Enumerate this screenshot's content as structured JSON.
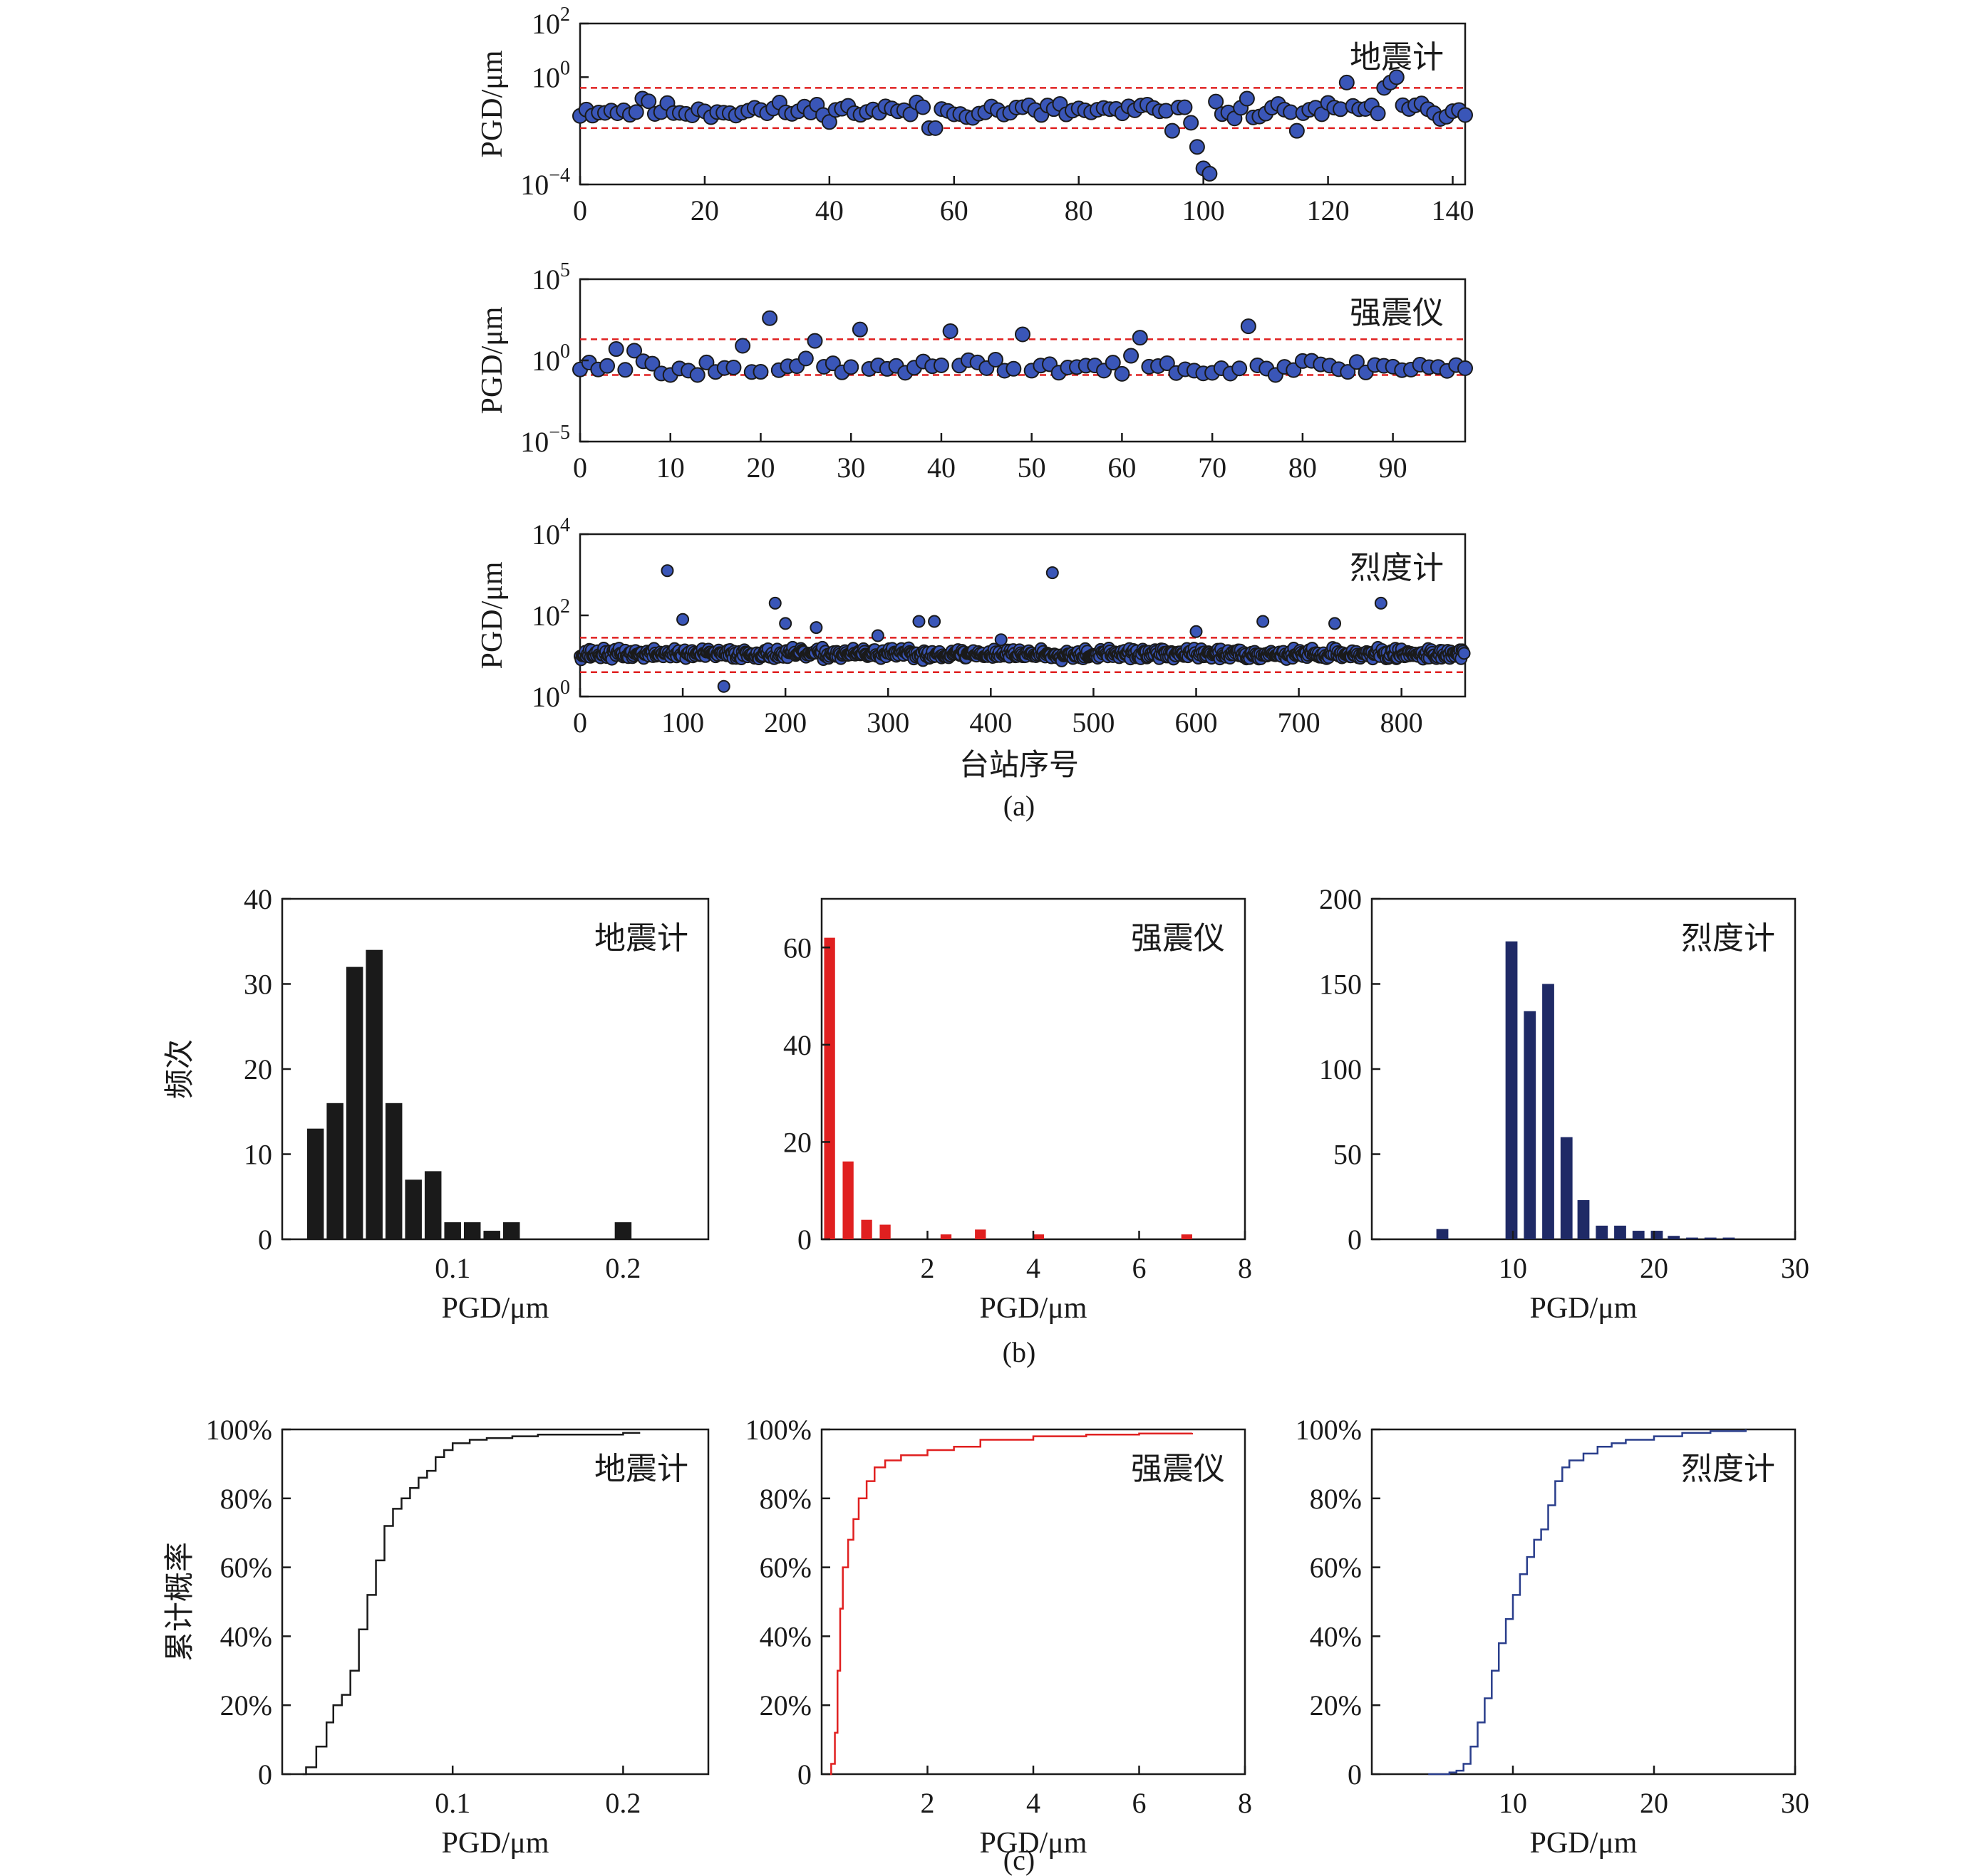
{
  "captions": {
    "a": "(a)",
    "b": "(b)",
    "c": "(c)"
  },
  "colors": {
    "blue_point": "#3a56b8",
    "red_line": "#e02020",
    "black_bar": "#1a1a1a",
    "red_bar": "#e02020",
    "navy_bar": "#1f2a66",
    "blue_cdf": "#2a3e8c"
  },
  "scatter_xlabel": "台站序号",
  "scatter": [
    {
      "label": "地震计",
      "ylabel": "PGD/μm",
      "xlim": [
        0,
        142
      ],
      "xticks": [
        0,
        20,
        40,
        60,
        80,
        100,
        120,
        140
      ],
      "ylim_exp": [
        -4,
        2
      ],
      "ytick_base": "10",
      "yticks": [
        {
          "exp": "2",
          "v": 2
        },
        {
          "exp": "0",
          "v": 0
        },
        {
          "exp": "−4",
          "v": -4
        }
      ],
      "thresholds": [
        -0.4,
        -1.9
      ],
      "n": 143,
      "seed": 11,
      "base": -1.25,
      "spread": 0.22,
      "outliers": [
        [
          100,
          -3.4
        ],
        [
          101,
          -3.6
        ],
        [
          99,
          -2.6
        ],
        [
          95,
          -2.0
        ],
        [
          98,
          -1.7
        ],
        [
          123,
          -0.2
        ],
        [
          131,
          0.0
        ],
        [
          130,
          -0.2
        ],
        [
          129,
          -0.4
        ],
        [
          107,
          -0.8
        ],
        [
          10,
          -0.8
        ],
        [
          11,
          -0.9
        ],
        [
          56,
          -1.9
        ],
        [
          57,
          -1.9
        ],
        [
          115,
          -2.0
        ]
      ]
    },
    {
      "label": "强震仪",
      "ylabel": "PGD/μm",
      "xlim": [
        0,
        98
      ],
      "xticks": [
        0,
        10,
        20,
        30,
        40,
        50,
        60,
        70,
        80,
        90
      ],
      "ylim_exp": [
        -5,
        5
      ],
      "ytick_base": "10",
      "yticks": [
        {
          "exp": "5",
          "v": 5
        },
        {
          "exp": "0",
          "v": 0
        },
        {
          "exp": "−5",
          "v": -5
        }
      ],
      "thresholds": [
        1.3,
        -0.9
      ],
      "n": 99,
      "seed": 23,
      "base": -0.4,
      "spread": 0.35,
      "outliers": [
        [
          21,
          2.6
        ],
        [
          31,
          1.9
        ],
        [
          41,
          1.8
        ],
        [
          49,
          1.6
        ],
        [
          62,
          1.4
        ],
        [
          74,
          2.1
        ],
        [
          26,
          1.2
        ],
        [
          18,
          0.9
        ],
        [
          4,
          0.7
        ],
        [
          6,
          0.6
        ],
        [
          10,
          -0.9
        ],
        [
          13,
          -0.9
        ],
        [
          69,
          -0.8
        ]
      ]
    },
    {
      "label": "烈度计",
      "ylabel": "PGD/μm",
      "xlim": [
        0,
        862
      ],
      "xticks": [
        0,
        100,
        200,
        300,
        400,
        500,
        600,
        700,
        800
      ],
      "ylim_exp": [
        0,
        4
      ],
      "ytick_base": "10",
      "yticks": [
        {
          "exp": "4",
          "v": 4
        },
        {
          "exp": "2",
          "v": 2
        },
        {
          "exp": "0",
          "v": 0
        }
      ],
      "thresholds": [
        1.45,
        0.6
      ],
      "n": 862,
      "seed": 37,
      "base": 1.05,
      "spread": 0.09,
      "outliers": [
        [
          85,
          3.1
        ],
        [
          100,
          1.9
        ],
        [
          140,
          0.25
        ],
        [
          190,
          2.3
        ],
        [
          200,
          1.8
        ],
        [
          230,
          1.7
        ],
        [
          330,
          1.85
        ],
        [
          345,
          1.85
        ],
        [
          460,
          3.05
        ],
        [
          600,
          1.6
        ],
        [
          665,
          1.85
        ],
        [
          735,
          1.8
        ],
        [
          780,
          2.3
        ],
        [
          290,
          1.5
        ],
        [
          410,
          1.4
        ]
      ]
    }
  ],
  "chart_data": [
    {
      "type": "bar",
      "label": "地震计",
      "ylabel": "频次",
      "xlabel": "PGD/μm",
      "xlim": [
        0.0,
        0.25
      ],
      "ylim": [
        0,
        40
      ],
      "bin_width": 0.0115,
      "xticks": [
        0.1,
        0.2
      ],
      "xtick_labels": [
        "0.1",
        "0.2"
      ],
      "yticks": [
        0,
        10,
        20,
        30,
        40
      ],
      "x": [
        0.0195,
        0.031,
        0.0425,
        0.054,
        0.0655,
        0.077,
        0.0885,
        0.1,
        0.1115,
        0.123,
        0.1345,
        0.146,
        0.2
      ],
      "values": [
        13,
        16,
        32,
        34,
        16,
        7,
        8,
        2,
        2,
        1,
        2,
        0,
        2
      ]
    },
    {
      "type": "bar",
      "label": "强震仪",
      "xlabel": "PGD/μm",
      "xlim": [
        0,
        8
      ],
      "ylim": [
        0,
        70
      ],
      "bin_width": 0.26,
      "xticks": [
        2,
        4,
        6,
        8
      ],
      "xtick_labels": [
        "2",
        "4",
        "6",
        "8"
      ],
      "yticks": [
        0,
        20,
        40,
        60
      ],
      "x": [
        0.15,
        0.5,
        0.85,
        1.2,
        2.35,
        3.0,
        4.1,
        6.9
      ],
      "values": [
        62,
        16,
        4,
        3,
        1,
        2,
        1,
        1
      ]
    },
    {
      "type": "bar",
      "label": "烈度计",
      "xlabel": "PGD/μm",
      "xlim": [
        0,
        30
      ],
      "ylim": [
        0,
        200
      ],
      "bin_width": 1.05,
      "xticks": [
        10,
        20,
        30
      ],
      "xtick_labels": [
        "10",
        "20",
        "30"
      ],
      "yticks": [
        0,
        50,
        100,
        150,
        200
      ],
      "x": [
        5.0,
        9.9,
        11.2,
        12.5,
        13.8,
        15.0,
        16.3,
        17.6,
        18.9,
        20.2,
        21.4,
        22.7,
        24.0,
        25.3
      ],
      "values": [
        6,
        175,
        134,
        150,
        60,
        23,
        8,
        8,
        5,
        5,
        2,
        1,
        1,
        1
      ]
    },
    {
      "type": "line",
      "label": "地震计",
      "ylabel": "累计概率",
      "xlabel": "PGD/μm",
      "xlim": [
        0.0,
        0.25
      ],
      "ylim": [
        0,
        100
      ],
      "yunit": "%",
      "xticks": [
        0.1,
        0.2
      ],
      "xtick_labels": [
        "0.1",
        "0.2"
      ],
      "yticks": [
        0,
        20,
        40,
        60,
        80,
        100
      ],
      "x": [
        0.012,
        0.014,
        0.02,
        0.026,
        0.03,
        0.035,
        0.04,
        0.045,
        0.05,
        0.055,
        0.06,
        0.065,
        0.07,
        0.075,
        0.08,
        0.085,
        0.09,
        0.095,
        0.1,
        0.11,
        0.12,
        0.135,
        0.15,
        0.2,
        0.21
      ],
      "values": [
        0,
        2,
        8,
        15,
        20,
        23,
        30,
        42,
        52,
        62,
        72,
        77,
        80,
        83,
        86,
        88,
        92,
        94,
        96,
        97,
        97.5,
        98,
        98.5,
        99,
        99
      ]
    },
    {
      "type": "line",
      "label": "强震仪",
      "xlabel": "PGD/μm",
      "xlim": [
        0,
        8
      ],
      "ylim": [
        0,
        100
      ],
      "yunit": "%",
      "xticks": [
        2,
        4,
        6,
        8
      ],
      "xtick_labels": [
        "2",
        "4",
        "6",
        "8"
      ],
      "yticks": [
        0,
        20,
        40,
        60,
        80,
        100
      ],
      "x": [
        0.1,
        0.18,
        0.25,
        0.3,
        0.35,
        0.4,
        0.5,
        0.6,
        0.7,
        0.85,
        1.0,
        1.2,
        1.5,
        2.0,
        2.5,
        3.0,
        4.0,
        5.0,
        6.0,
        7.0
      ],
      "values": [
        0,
        3,
        12,
        30,
        48,
        60,
        68,
        74,
        80,
        85,
        89,
        91,
        92.5,
        94,
        95,
        97,
        98,
        98.5,
        98.8,
        99
      ]
    },
    {
      "type": "line",
      "label": "烈度计",
      "xlabel": "PGD/μm",
      "xlim": [
        0,
        30
      ],
      "ylim": [
        0,
        100
      ],
      "yunit": "%",
      "xticks": [
        10,
        20,
        30
      ],
      "xtick_labels": [
        "10",
        "20",
        "30"
      ],
      "yticks": [
        0,
        20,
        40,
        60,
        80,
        100
      ],
      "x": [
        4.0,
        5.5,
        6.0,
        6.5,
        7.0,
        7.5,
        8.0,
        8.5,
        9.0,
        9.5,
        10.0,
        10.5,
        11.0,
        11.5,
        12.0,
        12.5,
        13.0,
        13.5,
        14.0,
        15.0,
        16.0,
        17.0,
        18.0,
        20.0,
        22.0,
        24.0,
        26.5
      ],
      "values": [
        0,
        0.5,
        1,
        3,
        8,
        15,
        22,
        30,
        38,
        45,
        52,
        58,
        63,
        68,
        71,
        78,
        85,
        89,
        91,
        93,
        95,
        96,
        97,
        98,
        99,
        99.5,
        100
      ]
    }
  ]
}
